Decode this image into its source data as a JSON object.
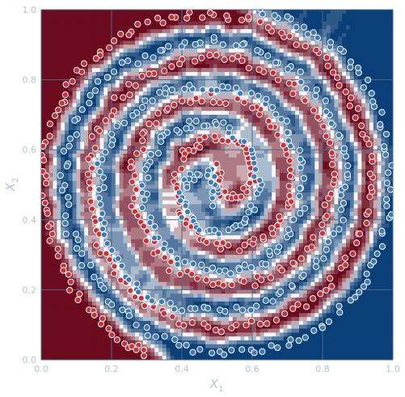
{
  "chart_data": {
    "type": "scatter",
    "title": "",
    "xlabel": "X",
    "xlabel_sub": "1",
    "ylabel": "X",
    "ylabel_sub": "2",
    "xlim": [
      0.0,
      1.0
    ],
    "ylim": [
      0.0,
      1.0
    ],
    "x_ticks": [
      "0.0",
      "0.2",
      "0.4",
      "0.6",
      "0.8",
      "1.0"
    ],
    "y_ticks": [
      "0.0",
      "0.2",
      "0.4",
      "0.6",
      "0.8",
      "1.0"
    ],
    "grid": true,
    "background": "decision-surface",
    "colors": {
      "red_class": "#c8333b",
      "blue_class": "#3f7ab4",
      "region_red": "#6c0a1e",
      "region_blue": "#0b3f78",
      "boundary": "#f6f6f6",
      "grid": "#4d6a8a",
      "point_edge": "#ffffff"
    },
    "series": [
      {
        "class": "red",
        "color": "#c8333b",
        "arm": [
          [
            0.51,
            0.55
          ],
          [
            0.5,
            0.5
          ],
          [
            0.52,
            0.46
          ],
          [
            0.57,
            0.47
          ],
          [
            0.6,
            0.52
          ],
          [
            0.59,
            0.59
          ],
          [
            0.54,
            0.63
          ],
          [
            0.46,
            0.63
          ],
          [
            0.4,
            0.58
          ],
          [
            0.38,
            0.49
          ],
          [
            0.41,
            0.39
          ],
          [
            0.48,
            0.33
          ],
          [
            0.57,
            0.32
          ],
          [
            0.65,
            0.36
          ],
          [
            0.7,
            0.44
          ],
          [
            0.71,
            0.55
          ],
          [
            0.67,
            0.66
          ],
          [
            0.59,
            0.73
          ],
          [
            0.48,
            0.75
          ],
          [
            0.38,
            0.73
          ],
          [
            0.3,
            0.66
          ],
          [
            0.26,
            0.56
          ],
          [
            0.26,
            0.44
          ],
          [
            0.3,
            0.34
          ],
          [
            0.37,
            0.26
          ],
          [
            0.48,
            0.22
          ],
          [
            0.6,
            0.22
          ],
          [
            0.71,
            0.27
          ],
          [
            0.79,
            0.36
          ],
          [
            0.83,
            0.48
          ],
          [
            0.82,
            0.6
          ],
          [
            0.77,
            0.72
          ],
          [
            0.68,
            0.81
          ],
          [
            0.56,
            0.86
          ],
          [
            0.43,
            0.86
          ],
          [
            0.31,
            0.82
          ],
          [
            0.21,
            0.74
          ],
          [
            0.15,
            0.63
          ],
          [
            0.13,
            0.5
          ],
          [
            0.15,
            0.37
          ],
          [
            0.2,
            0.26
          ],
          [
            0.28,
            0.17
          ],
          [
            0.39,
            0.11
          ],
          [
            0.52,
            0.09
          ],
          [
            0.65,
            0.11
          ],
          [
            0.77,
            0.17
          ],
          [
            0.86,
            0.27
          ],
          [
            0.92,
            0.39
          ],
          [
            0.94,
            0.52
          ],
          [
            0.92,
            0.65
          ],
          [
            0.87,
            0.77
          ],
          [
            0.79,
            0.87
          ],
          [
            0.68,
            0.94
          ],
          [
            0.56,
            0.98
          ],
          [
            0.43,
            0.99
          ],
          [
            0.3,
            0.96
          ],
          [
            0.19,
            0.9
          ],
          [
            0.1,
            0.82
          ],
          [
            0.04,
            0.71
          ],
          [
            0.01,
            0.59
          ],
          [
            0.01,
            0.45
          ],
          [
            0.03,
            0.33
          ],
          [
            0.08,
            0.22
          ],
          [
            0.15,
            0.12
          ],
          [
            0.24,
            0.05
          ],
          [
            0.3,
            0.02
          ]
        ]
      },
      {
        "class": "blue",
        "color": "#3f7ab4",
        "arm": [
          [
            0.49,
            0.45
          ],
          [
            0.5,
            0.5
          ],
          [
            0.48,
            0.54
          ],
          [
            0.43,
            0.53
          ],
          [
            0.4,
            0.48
          ],
          [
            0.41,
            0.41
          ],
          [
            0.46,
            0.37
          ],
          [
            0.54,
            0.37
          ],
          [
            0.6,
            0.42
          ],
          [
            0.62,
            0.51
          ],
          [
            0.59,
            0.61
          ],
          [
            0.52,
            0.67
          ],
          [
            0.43,
            0.68
          ],
          [
            0.35,
            0.64
          ],
          [
            0.3,
            0.56
          ],
          [
            0.29,
            0.45
          ],
          [
            0.33,
            0.34
          ],
          [
            0.41,
            0.27
          ],
          [
            0.52,
            0.25
          ],
          [
            0.62,
            0.27
          ],
          [
            0.7,
            0.34
          ],
          [
            0.74,
            0.44
          ],
          [
            0.74,
            0.56
          ],
          [
            0.7,
            0.66
          ],
          [
            0.63,
            0.74
          ],
          [
            0.52,
            0.78
          ],
          [
            0.4,
            0.78
          ],
          [
            0.29,
            0.74
          ],
          [
            0.21,
            0.66
          ],
          [
            0.17,
            0.56
          ],
          [
            0.17,
            0.44
          ],
          [
            0.19,
            0.33
          ],
          [
            0.25,
            0.23
          ],
          [
            0.32,
            0.16
          ],
          [
            0.44,
            0.14
          ],
          [
            0.57,
            0.14
          ],
          [
            0.69,
            0.19
          ],
          [
            0.79,
            0.28
          ],
          [
            0.85,
            0.4
          ],
          [
            0.87,
            0.52
          ],
          [
            0.85,
            0.63
          ],
          [
            0.8,
            0.73
          ],
          [
            0.72,
            0.83
          ],
          [
            0.61,
            0.89
          ],
          [
            0.48,
            0.91
          ],
          [
            0.35,
            0.89
          ],
          [
            0.23,
            0.84
          ],
          [
            0.14,
            0.76
          ],
          [
            0.08,
            0.63
          ],
          [
            0.06,
            0.5
          ],
          [
            0.08,
            0.37
          ],
          [
            0.13,
            0.26
          ],
          [
            0.21,
            0.16
          ],
          [
            0.31,
            0.08
          ],
          [
            0.44,
            0.03
          ],
          [
            0.57,
            0.02
          ],
          [
            0.7,
            0.04
          ],
          [
            0.81,
            0.1
          ],
          [
            0.9,
            0.19
          ],
          [
            0.96,
            0.31
          ],
          [
            0.99,
            0.44
          ],
          [
            0.99,
            0.58
          ],
          [
            0.96,
            0.7
          ],
          [
            0.91,
            0.81
          ],
          [
            0.83,
            0.9
          ],
          [
            0.73,
            0.96
          ],
          [
            0.62,
            1.0
          ]
        ]
      }
    ]
  }
}
